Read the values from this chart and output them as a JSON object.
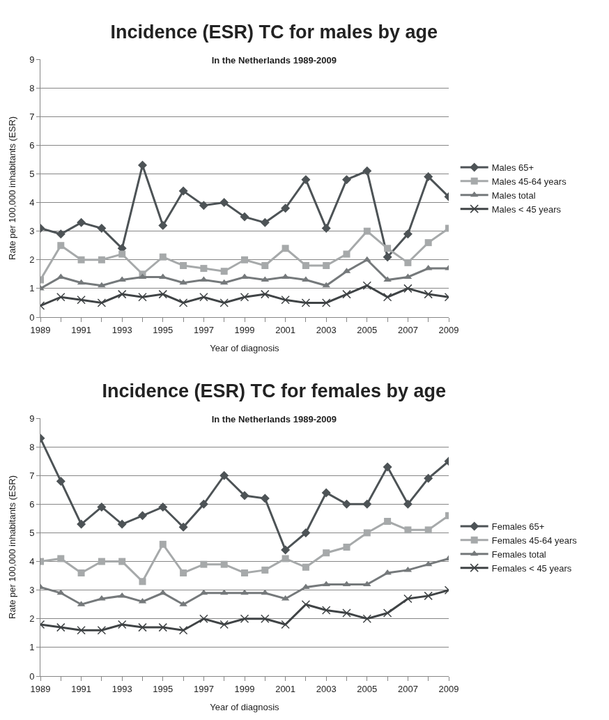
{
  "chart_data": [
    {
      "type": "line",
      "title": "Incidence (ESR) TC for males by age",
      "subtitle": "In the Netherlands 1989-2009",
      "xlabel": "Year of diagnosis",
      "ylabel": "Rate per 100,000 inhabitants (ESR)",
      "x": [
        1989,
        1990,
        1991,
        1992,
        1993,
        1994,
        1995,
        1996,
        1997,
        1998,
        1999,
        2000,
        2001,
        2002,
        2003,
        2004,
        2005,
        2006,
        2007,
        2008,
        2009
      ],
      "xlim": [
        1989,
        2009
      ],
      "xticks": [
        1989,
        1991,
        1993,
        1995,
        1997,
        1999,
        2001,
        2003,
        2005,
        2007,
        2009
      ],
      "ylim": [
        0,
        9
      ],
      "yticks": [
        0,
        1,
        2,
        3,
        4,
        5,
        6,
        7,
        8,
        9
      ],
      "grid": "y",
      "legend": "right",
      "line_style": "solid",
      "series": [
        {
          "name": "Males 65+",
          "color": "#4d5356",
          "marker": "diamond",
          "values": [
            3.1,
            2.9,
            3.3,
            3.1,
            2.4,
            5.3,
            3.2,
            4.4,
            3.9,
            4.0,
            3.5,
            3.3,
            3.8,
            4.8,
            3.1,
            4.8,
            5.1,
            2.1,
            2.9,
            4.9,
            4.2
          ]
        },
        {
          "name": "Males 45-64 years",
          "color": "#a6a9aa",
          "marker": "square",
          "values": [
            1.3,
            2.5,
            2.0,
            2.0,
            2.2,
            1.5,
            2.1,
            1.8,
            1.7,
            1.6,
            2.0,
            1.8,
            2.4,
            1.8,
            1.8,
            2.2,
            3.0,
            2.4,
            1.9,
            2.6,
            3.1
          ]
        },
        {
          "name": "Males total",
          "color": "#75797b",
          "marker": "triangle",
          "values": [
            1.0,
            1.4,
            1.2,
            1.1,
            1.3,
            1.4,
            1.4,
            1.2,
            1.3,
            1.2,
            1.4,
            1.3,
            1.4,
            1.3,
            1.1,
            1.6,
            2.0,
            1.3,
            1.4,
            1.7,
            1.7
          ]
        },
        {
          "name": "Males < 45 years",
          "color": "#3f4345",
          "marker": "cross",
          "values": [
            0.4,
            0.7,
            0.6,
            0.5,
            0.8,
            0.7,
            0.8,
            0.5,
            0.7,
            0.5,
            0.7,
            0.8,
            0.6,
            0.5,
            0.5,
            0.8,
            1.1,
            0.7,
            1.0,
            0.8,
            0.7
          ]
        }
      ]
    },
    {
      "type": "line",
      "title": "Incidence (ESR) TC for females by age",
      "subtitle": "In the Netherlands 1989-2009",
      "xlabel": "Year of diagnosis",
      "ylabel": "Rate per 100,000 inhabitants (ESR)",
      "x": [
        1989,
        1990,
        1991,
        1992,
        1993,
        1994,
        1995,
        1996,
        1997,
        1998,
        1999,
        2000,
        2001,
        2002,
        2003,
        2004,
        2005,
        2006,
        2007,
        2008,
        2009
      ],
      "xlim": [
        1989,
        2009
      ],
      "xticks": [
        1989,
        1991,
        1993,
        1995,
        1997,
        1999,
        2001,
        2003,
        2005,
        2007,
        2009
      ],
      "ylim": [
        0,
        9
      ],
      "yticks": [
        0,
        1,
        2,
        3,
        4,
        5,
        6,
        7,
        8,
        9
      ],
      "grid": "y",
      "legend": "right",
      "line_style": "solid",
      "series": [
        {
          "name": "Females 65+",
          "color": "#4d5356",
          "marker": "diamond",
          "values": [
            8.3,
            6.8,
            5.3,
            5.9,
            5.3,
            5.6,
            5.9,
            5.2,
            6.0,
            7.0,
            6.3,
            6.2,
            4.4,
            5.0,
            6.4,
            6.0,
            6.0,
            7.3,
            6.0,
            6.9,
            7.5
          ]
        },
        {
          "name": "Females 45-64 years",
          "color": "#a6a9aa",
          "marker": "square",
          "values": [
            4.0,
            4.1,
            3.6,
            4.0,
            4.0,
            3.3,
            4.6,
            3.6,
            3.9,
            3.9,
            3.6,
            3.7,
            4.1,
            3.8,
            4.3,
            4.5,
            5.0,
            5.4,
            5.1,
            5.1,
            5.6
          ]
        },
        {
          "name": "Females total",
          "color": "#75797b",
          "marker": "triangle",
          "values": [
            3.1,
            2.9,
            2.5,
            2.7,
            2.8,
            2.6,
            2.9,
            2.5,
            2.9,
            2.9,
            2.9,
            2.9,
            2.7,
            3.1,
            3.2,
            3.2,
            3.2,
            3.6,
            3.7,
            3.9,
            4.1
          ]
        },
        {
          "name": "Females < 45 years",
          "color": "#3f4345",
          "marker": "cross",
          "values": [
            1.8,
            1.7,
            1.6,
            1.6,
            1.8,
            1.7,
            1.7,
            1.6,
            2.0,
            1.8,
            2.0,
            2.0,
            1.8,
            2.5,
            2.3,
            2.2,
            2.0,
            2.2,
            2.7,
            2.8,
            3.0
          ]
        }
      ]
    }
  ]
}
